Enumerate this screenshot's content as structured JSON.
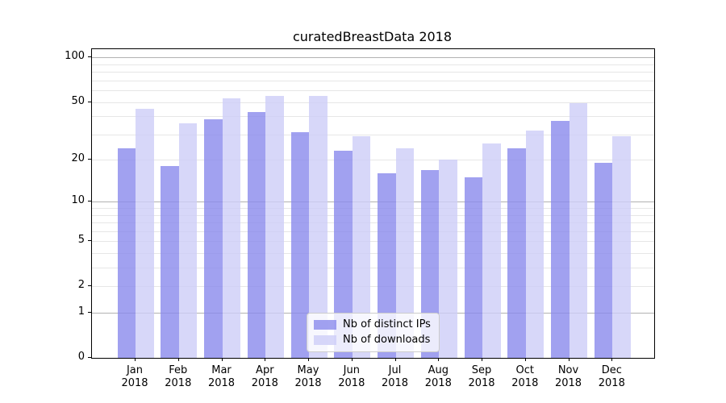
{
  "chart_data": {
    "type": "bar",
    "title": "curatedBreastData 2018",
    "categories": [
      "Jan 2018",
      "Feb 2018",
      "Mar 2018",
      "Apr 2018",
      "May 2018",
      "Jun 2018",
      "Jul 2018",
      "Aug 2018",
      "Sep 2018",
      "Oct 2018",
      "Nov 2018",
      "Dec 2018"
    ],
    "series": [
      {
        "name": "Nb of distinct IPs",
        "color_hex": "#a2a2f0",
        "fill": "rgba(138,138,236,0.8)",
        "values": [
          24,
          18,
          38,
          43,
          31,
          23,
          16,
          17,
          15,
          24,
          37,
          19
        ]
      },
      {
        "name": "Nb of downloads",
        "color_hex": "#d7d7f8",
        "fill": "rgba(205,205,247,0.8)",
        "values": [
          45,
          36,
          53,
          55,
          55,
          29,
          24,
          20,
          26,
          32,
          49,
          29
        ]
      }
    ],
    "xlabel": "",
    "ylabel": "",
    "yscale": "log1p",
    "ylim": [
      0,
      115
    ],
    "y_ticks": [
      100,
      50,
      20,
      10,
      5,
      2,
      1,
      0
    ],
    "y_major_gridlines": [
      1,
      10,
      100
    ],
    "y_minor_gridlines": [
      2,
      3,
      4,
      5,
      6,
      7,
      8,
      9,
      20,
      30,
      40,
      50,
      60,
      70,
      80,
      90
    ],
    "grid": "horizontal",
    "legend_position": "lower center"
  },
  "colors": {
    "distinct_ips_bar": "#a2a2f0",
    "downloads_bar": "#d7d7f8",
    "major_grid": "#b2b2b2",
    "minor_grid": "#e6e6e6",
    "axis": "#000000",
    "legend_border": "#cccccc"
  }
}
